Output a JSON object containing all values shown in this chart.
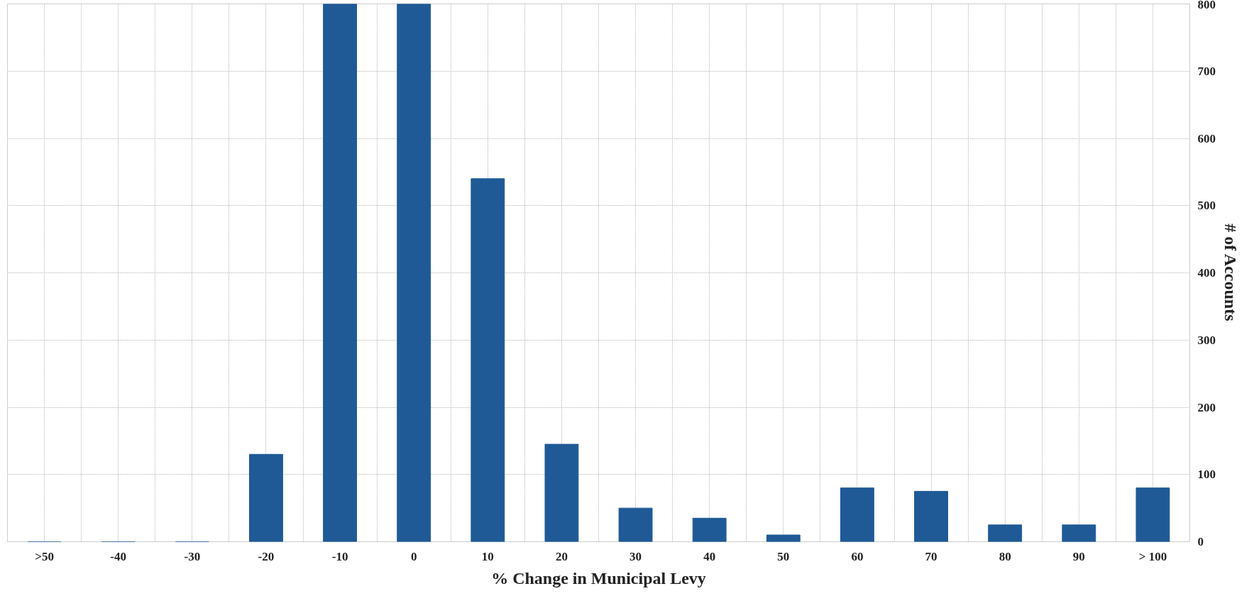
{
  "chart_data": {
    "type": "bar",
    "xlabel": "% Change in Municipal Levy",
    "ylabel": "# of Accounts",
    "categories": [
      ">50",
      "-40",
      "-30",
      "-20",
      "-10",
      "0",
      "10",
      "20",
      "30",
      "40",
      "50",
      "60",
      "70",
      "80",
      "90",
      "> 100"
    ],
    "values": [
      0,
      0,
      0,
      130,
      800,
      800,
      540,
      145,
      50,
      35,
      10,
      80,
      75,
      25,
      25,
      80
    ],
    "color": "#1f5a96",
    "ylim": [
      0,
      800
    ],
    "yticks": [
      0,
      100,
      200,
      300,
      400,
      500,
      600,
      700,
      800
    ],
    "grid": true
  }
}
